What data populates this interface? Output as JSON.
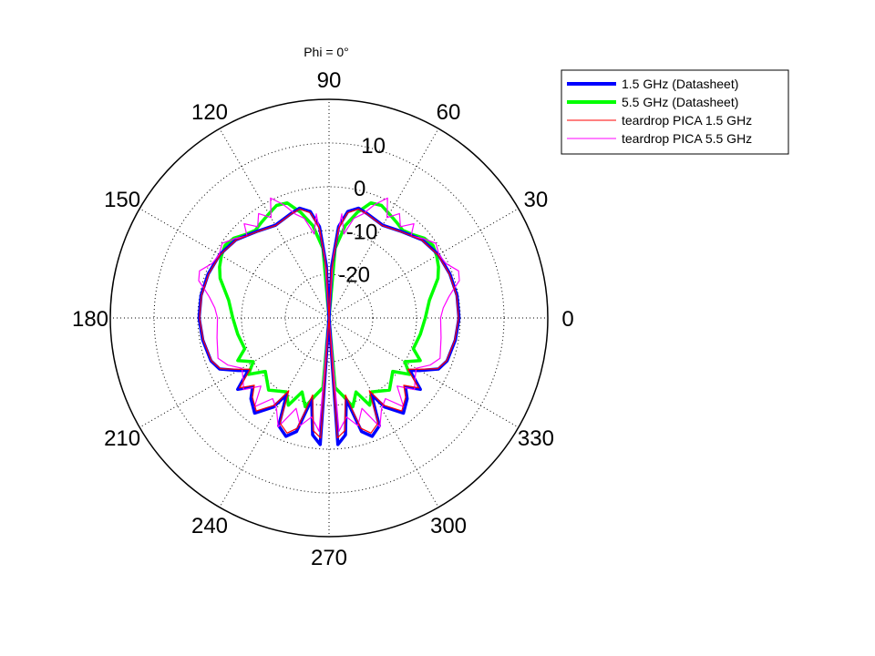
{
  "chart_data": {
    "type": "polar",
    "title": "Phi = 0°",
    "angle_unit": "degrees",
    "angle_ticks": [
      0,
      30,
      60,
      90,
      120,
      150,
      180,
      210,
      240,
      270,
      300,
      330
    ],
    "angle_labels": [
      "0",
      "30",
      "60",
      "90",
      "120",
      "150",
      "180",
      "210",
      "240",
      "270",
      "300",
      "330"
    ],
    "radial_range": [
      -30,
      20
    ],
    "radial_ticks": [
      -20,
      -10,
      0,
      10
    ],
    "radial_labels": [
      "-20",
      "-10",
      "0",
      "10"
    ],
    "grid": true,
    "legend_position": "top-right",
    "series": [
      {
        "name": "1.5 GHz (Datasheet)",
        "color": "#0000ff",
        "points": [
          [
            0,
            -0.3
          ],
          [
            10,
            -0.3
          ],
          [
            20,
            -0.6
          ],
          [
            30,
            -1.1
          ],
          [
            40,
            -2.2
          ],
          [
            50,
            -4.2
          ],
          [
            60,
            -5.5
          ],
          [
            70,
            -4.6
          ],
          [
            75,
            -4.0
          ],
          [
            80,
            -5.3
          ],
          [
            84,
            -9.0
          ],
          [
            87,
            -18.0
          ],
          [
            90,
            -30.0
          ],
          [
            93,
            -18.0
          ],
          [
            96,
            -9.0
          ],
          [
            100,
            -5.3
          ],
          [
            105,
            -4.0
          ],
          [
            110,
            -4.6
          ],
          [
            120,
            -5.5
          ],
          [
            130,
            -4.2
          ],
          [
            140,
            -2.2
          ],
          [
            150,
            -1.1
          ],
          [
            160,
            -0.6
          ],
          [
            170,
            -0.3
          ],
          [
            180,
            -0.3
          ],
          [
            190,
            -0.7
          ],
          [
            200,
            -1.3
          ],
          [
            205,
            -2.4
          ],
          [
            210,
            -6.0
          ],
          [
            213,
            -8.0
          ],
          [
            218,
            -3.5
          ],
          [
            222,
            -6.5
          ],
          [
            226,
            -4.3
          ],
          [
            232,
            -2.4
          ],
          [
            238,
            -6.0
          ],
          [
            241,
            -10.0
          ],
          [
            245,
            -2.8
          ],
          [
            250,
            -1.2
          ],
          [
            254,
            -3.0
          ],
          [
            258,
            -11.0
          ],
          [
            262,
            -3.0
          ],
          [
            266,
            -1.0
          ],
          [
            270,
            -30.0
          ],
          [
            274,
            -1.0
          ],
          [
            278,
            -3.0
          ],
          [
            282,
            -11.0
          ],
          [
            286,
            -3.0
          ],
          [
            290,
            -1.2
          ],
          [
            295,
            -2.8
          ],
          [
            299,
            -10.0
          ],
          [
            302,
            -6.0
          ],
          [
            308,
            -2.4
          ],
          [
            314,
            -4.3
          ],
          [
            318,
            -6.5
          ],
          [
            322,
            -3.5
          ],
          [
            327,
            -8.0
          ],
          [
            330,
            -6.0
          ],
          [
            335,
            -2.4
          ],
          [
            340,
            -1.3
          ],
          [
            350,
            -0.7
          ],
          [
            360,
            -0.3
          ]
        ]
      },
      {
        "name": "5.5 GHz (Datasheet)",
        "color": "#00ff00",
        "points": [
          [
            0,
            -8.0
          ],
          [
            10,
            -6.7
          ],
          [
            20,
            -3.5
          ],
          [
            25,
            -2.4
          ],
          [
            30,
            -1.6
          ],
          [
            35,
            -1.0
          ],
          [
            40,
            -1.6
          ],
          [
            45,
            -3.0
          ],
          [
            50,
            -3.8
          ],
          [
            55,
            -3.2
          ],
          [
            60,
            -2.5
          ],
          [
            65,
            -1.6
          ],
          [
            70,
            -2.0
          ],
          [
            75,
            -5.0
          ],
          [
            80,
            -8.5
          ],
          [
            85,
            -14.0
          ],
          [
            90,
            -30.0
          ],
          [
            95,
            -14.0
          ],
          [
            100,
            -8.5
          ],
          [
            105,
            -5.0
          ],
          [
            110,
            -2.0
          ],
          [
            115,
            -1.6
          ],
          [
            120,
            -2.5
          ],
          [
            125,
            -3.2
          ],
          [
            130,
            -3.8
          ],
          [
            135,
            -3.0
          ],
          [
            140,
            -1.6
          ],
          [
            145,
            -1.0
          ],
          [
            150,
            -1.6
          ],
          [
            155,
            -2.4
          ],
          [
            160,
            -3.5
          ],
          [
            170,
            -6.7
          ],
          [
            180,
            -8.0
          ],
          [
            190,
            -8.8
          ],
          [
            200,
            -9.5
          ],
          [
            205,
            -7.0
          ],
          [
            210,
            -10.0
          ],
          [
            215,
            -7.5
          ],
          [
            220,
            -11.0
          ],
          [
            230,
            -8.5
          ],
          [
            240,
            -10.5
          ],
          [
            245,
            -8.0
          ],
          [
            250,
            -12.0
          ],
          [
            255,
            -9.0
          ],
          [
            260,
            -12.0
          ],
          [
            265,
            -14.0
          ],
          [
            270,
            -30.0
          ],
          [
            275,
            -14.0
          ],
          [
            280,
            -12.0
          ],
          [
            285,
            -9.0
          ],
          [
            290,
            -12.0
          ],
          [
            295,
            -8.0
          ],
          [
            300,
            -10.5
          ],
          [
            310,
            -8.5
          ],
          [
            320,
            -11.0
          ],
          [
            325,
            -7.5
          ],
          [
            330,
            -10.0
          ],
          [
            335,
            -7.0
          ],
          [
            340,
            -9.5
          ],
          [
            350,
            -8.8
          ],
          [
            360,
            -8.0
          ]
        ]
      },
      {
        "name": "teardrop PICA 1.5 GHz",
        "color": "#ff0000",
        "points": [
          [
            0,
            -0.4
          ],
          [
            10,
            -0.4
          ],
          [
            20,
            -0.7
          ],
          [
            30,
            -1.2
          ],
          [
            40,
            -2.3
          ],
          [
            50,
            -4.3
          ],
          [
            60,
            -5.6
          ],
          [
            70,
            -4.7
          ],
          [
            75,
            -4.2
          ],
          [
            80,
            -5.6
          ],
          [
            84,
            -9.5
          ],
          [
            87,
            -19.0
          ],
          [
            90,
            -30.0
          ],
          [
            93,
            -19.0
          ],
          [
            96,
            -9.5
          ],
          [
            100,
            -5.6
          ],
          [
            105,
            -4.2
          ],
          [
            110,
            -4.7
          ],
          [
            120,
            -5.6
          ],
          [
            130,
            -4.3
          ],
          [
            140,
            -2.3
          ],
          [
            150,
            -1.2
          ],
          [
            160,
            -0.7
          ],
          [
            170,
            -0.4
          ],
          [
            180,
            -0.4
          ],
          [
            190,
            -0.8
          ],
          [
            200,
            -1.4
          ],
          [
            205,
            -2.6
          ],
          [
            210,
            -6.5
          ],
          [
            213,
            -8.5
          ],
          [
            218,
            -4.0
          ],
          [
            222,
            -7.0
          ],
          [
            226,
            -4.8
          ],
          [
            232,
            -3.0
          ],
          [
            238,
            -6.5
          ],
          [
            241,
            -11.0
          ],
          [
            245,
            -3.5
          ],
          [
            250,
            -2.0
          ],
          [
            254,
            -3.8
          ],
          [
            258,
            -12.0
          ],
          [
            262,
            -4.0
          ],
          [
            266,
            -2.5
          ],
          [
            270,
            -30.0
          ],
          [
            274,
            -2.5
          ],
          [
            278,
            -4.0
          ],
          [
            282,
            -12.0
          ],
          [
            286,
            -3.8
          ],
          [
            290,
            -2.0
          ],
          [
            295,
            -3.5
          ],
          [
            299,
            -11.0
          ],
          [
            302,
            -6.5
          ],
          [
            308,
            -3.0
          ],
          [
            314,
            -4.8
          ],
          [
            318,
            -7.0
          ],
          [
            322,
            -4.0
          ],
          [
            327,
            -8.5
          ],
          [
            330,
            -6.5
          ],
          [
            335,
            -2.6
          ],
          [
            340,
            -1.4
          ],
          [
            350,
            -0.8
          ],
          [
            360,
            -0.4
          ]
        ]
      },
      {
        "name": "teardrop PICA 5.5 GHz",
        "color": "#ff00ff",
        "points": [
          [
            0,
            -4.5
          ],
          [
            5,
            -3.8
          ],
          [
            10,
            -2.2
          ],
          [
            13,
            -0.8
          ],
          [
            16,
            1.0
          ],
          [
            20,
            1.5
          ],
          [
            25,
            -0.5
          ],
          [
            30,
            -1.0
          ],
          [
            35,
            -0.2
          ],
          [
            40,
            -1.8
          ],
          [
            45,
            -3.5
          ],
          [
            48,
            -1.0
          ],
          [
            52,
            -3.5
          ],
          [
            56,
            -1.2
          ],
          [
            60,
            -3.5
          ],
          [
            64,
            0.5
          ],
          [
            68,
            -2.0
          ],
          [
            72,
            -5.0
          ],
          [
            76,
            -6.5
          ],
          [
            80,
            -10.5
          ],
          [
            83,
            -6.0
          ],
          [
            86,
            -16.0
          ],
          [
            90,
            -30.0
          ],
          [
            94,
            -16.0
          ],
          [
            97,
            -6.0
          ],
          [
            100,
            -10.5
          ],
          [
            104,
            -6.5
          ],
          [
            108,
            -5.0
          ],
          [
            112,
            -2.0
          ],
          [
            116,
            0.5
          ],
          [
            120,
            -3.5
          ],
          [
            124,
            -1.2
          ],
          [
            128,
            -3.5
          ],
          [
            132,
            -1.0
          ],
          [
            135,
            -3.5
          ],
          [
            140,
            -1.8
          ],
          [
            145,
            -0.2
          ],
          [
            150,
            -1.0
          ],
          [
            155,
            -0.5
          ],
          [
            160,
            1.5
          ],
          [
            164,
            1.0
          ],
          [
            167,
            -0.8
          ],
          [
            170,
            -2.2
          ],
          [
            175,
            -3.8
          ],
          [
            180,
            -4.5
          ],
          [
            190,
            -4.0
          ],
          [
            200,
            -3.0
          ],
          [
            205,
            -4.5
          ],
          [
            210,
            -7.0
          ],
          [
            215,
            -6.0
          ],
          [
            220,
            -4.5
          ],
          [
            225,
            -8.0
          ],
          [
            230,
            -3.5
          ],
          [
            235,
            -7.5
          ],
          [
            240,
            -6.0
          ],
          [
            245,
            -2.5
          ],
          [
            250,
            -8.0
          ],
          [
            255,
            -4.5
          ],
          [
            260,
            -7.0
          ],
          [
            265,
            -4.0
          ],
          [
            270,
            -30.0
          ],
          [
            275,
            -4.0
          ],
          [
            280,
            -7.0
          ],
          [
            285,
            -4.5
          ],
          [
            290,
            -8.0
          ],
          [
            295,
            -2.5
          ],
          [
            300,
            -6.0
          ],
          [
            305,
            -7.5
          ],
          [
            310,
            -3.5
          ],
          [
            315,
            -8.0
          ],
          [
            320,
            -4.5
          ],
          [
            325,
            -6.0
          ],
          [
            330,
            -7.0
          ],
          [
            335,
            -4.5
          ],
          [
            340,
            -3.0
          ],
          [
            350,
            -4.0
          ],
          [
            360,
            -4.5
          ]
        ]
      }
    ]
  }
}
